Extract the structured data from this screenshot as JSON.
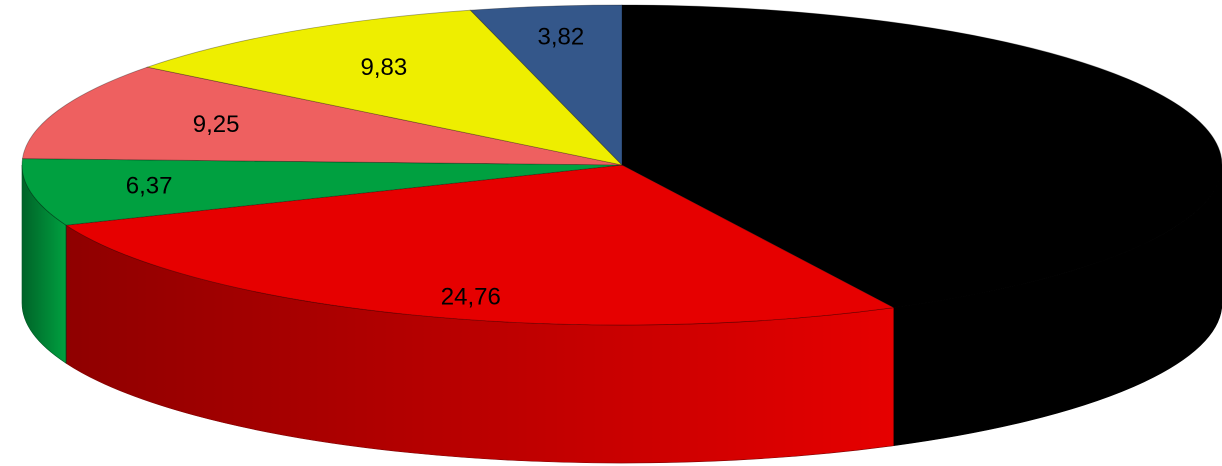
{
  "chart_data": {
    "type": "pie",
    "style": "3d",
    "title": "",
    "legend": "none",
    "start_angle_deg": 0,
    "direction": "clockwise",
    "slices": [
      {
        "value": 39.97,
        "label": "",
        "color": "#000000"
      },
      {
        "value": 24.76,
        "label": "24,76",
        "color": "#E60000"
      },
      {
        "value": 6.37,
        "label": "6,37",
        "color": "#00A040"
      },
      {
        "value": 9.25,
        "label": "9,25",
        "color": "#EE6060"
      },
      {
        "value": 9.83,
        "label": "9,83",
        "color": "#EEEE00"
      },
      {
        "value": 3.82,
        "label": "3,82",
        "color": "#34578A"
      }
    ]
  }
}
